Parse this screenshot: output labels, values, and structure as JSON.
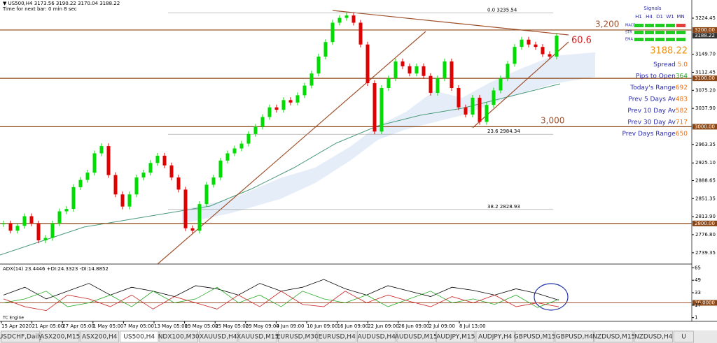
{
  "header": {
    "symbol": "▼ US500,H4 3173.56 3190.22 3170.04 3188.22",
    "timer": "Time for next bar: 0 min 8 sec"
  },
  "chart": {
    "type": "candlestick",
    "ylim": [
      2716,
      3262
    ],
    "closes": [
      2800,
      2785,
      2795,
      2815,
      2800,
      2765,
      2770,
      2800,
      2825,
      2830,
      2875,
      2890,
      2905,
      2945,
      2960,
      2900,
      2860,
      2835,
      2860,
      2895,
      2905,
      2925,
      2940,
      2920,
      2895,
      2870,
      2790,
      2785,
      2840,
      2880,
      2895,
      2930,
      2945,
      2955,
      2965,
      2985,
      3000,
      3020,
      3040,
      3035,
      3055,
      3050,
      3065,
      3085,
      3110,
      3145,
      3175,
      3215,
      3225,
      3230,
      3215,
      3170,
      3090,
      2990,
      3080,
      3100,
      3135,
      3125,
      3110,
      3125,
      3105,
      3070,
      3100,
      3135,
      3080,
      3040,
      3025,
      3060,
      3010,
      3045,
      3075,
      3100,
      3130,
      3165,
      3180,
      3170,
      3165,
      3150,
      3145,
      3188.22
    ],
    "up_color": "#00dd00",
    "down_color": "#e00000",
    "yticks": [
      3224.45,
      {
        "value": 3149.7,
        "label": "3149.70"
      },
      3112.45,
      {
        "value": 3075.2,
        "label": "3075.20"
      },
      {
        "value": 3037.9,
        "label": "3037.90"
      },
      2963.35,
      {
        "value": 2925.1,
        "label": "2925.10"
      },
      2888.65,
      2851.35,
      {
        "value": 2813.9,
        "label": "2813.90"
      },
      {
        "value": 2776.8,
        "label": "2776.80"
      },
      2739.35
    ],
    "levels": [
      {
        "value": 3200,
        "label": "3200.00"
      },
      {
        "value": 3100,
        "label": "3100.00"
      },
      {
        "value": 3000,
        "label": "3000.00"
      },
      {
        "value": 2800,
        "label": "2800.00"
      }
    ],
    "last": 3188.22,
    "fibs": [
      {
        "label": "0.0",
        "price": 3235.54
      },
      {
        "label": "23.6",
        "price": 2984.34
      },
      {
        "label": "38.2",
        "price": 2828.93
      }
    ],
    "notes": [
      "3,200",
      "3,000",
      "60.6"
    ],
    "xlabels": [
      "15 Apr 2020",
      "21 Apr 05:00",
      "27 Apr 05:00",
      "1 May 05:00",
      "7 May 05:00",
      "13 May 05:00",
      "19 May 05:00",
      "25 May 05:00",
      "29 May 09:00",
      "4 Jun 09:00",
      "10 Jun 09:00",
      "16 Jun 09:00",
      "22 Jun 09:00",
      "26 Jun 09:00",
      "2 Jul 09:00",
      "8 Jul 13:00"
    ]
  },
  "info": {
    "price": "3188.22",
    "rows": [
      [
        "Spread ",
        "5.0"
      ],
      [
        "Pips to Open",
        "364"
      ],
      [
        "Today's Range",
        "692"
      ],
      [
        "Prev 5 Days Av",
        "483"
      ],
      [
        "Prev 10 Day Av",
        "582"
      ],
      [
        "Prev 30 Day Av",
        "717"
      ],
      [
        "Prev Days Range",
        "650"
      ]
    ]
  },
  "signals": {
    "title": "Signals",
    "columns": [
      "H1",
      "H4",
      "D1",
      "W1",
      "MN"
    ],
    "rows": [
      {
        "name": "MACD",
        "colors": [
          "#22cc22",
          "#22cc22",
          "#22cc22",
          "#22cc22",
          "#e04040"
        ]
      },
      {
        "name": "STR",
        "colors": [
          "#22cc22",
          "#22cc22",
          "#22cc22",
          "#22cc22",
          "#22cc22"
        ]
      },
      {
        "name": "EMA",
        "colors": [
          "#22cc22",
          "#22cc22",
          "#22cc22",
          "#22cc22",
          "#22cc22"
        ]
      }
    ]
  },
  "adx": {
    "label": "ADX(14) 23.4446 +DI:24.3323 -DI:14.8852",
    "ylim": [
      -2,
      68
    ],
    "yticks": [
      65,
      49,
      33,
      {
        "value": 20,
        "label": "20.0000"
      },
      17,
      1
    ],
    "series": [
      {
        "color": "#000000",
        "values": [
          30,
          40,
          25,
          35,
          45,
          30,
          40,
          35,
          28,
          42,
          38,
          30,
          45,
          35,
          40,
          50,
          38,
          30,
          42,
          35,
          28,
          40,
          36,
          30,
          38,
          32,
          23.4446
        ]
      },
      {
        "color": "#22aa22",
        "values": [
          20,
          25,
          35,
          15,
          20,
          30,
          15,
          35,
          20,
          25,
          40,
          20,
          30,
          15,
          35,
          25,
          20,
          30,
          15,
          25,
          35,
          20,
          25,
          18,
          30,
          14,
          24.3323
        ]
      },
      {
        "color": "#cc2222",
        "values": [
          25,
          15,
          10,
          30,
          25,
          15,
          30,
          12,
          28,
          20,
          12,
          30,
          15,
          35,
          18,
          15,
          35,
          20,
          30,
          22,
          15,
          28,
          20,
          30,
          15,
          20,
          14.8852
        ]
      }
    ]
  },
  "engine": "TC Engine",
  "tabs": [
    "USDCHF,Daily",
    "ASX200,M15",
    "ASX200,H4",
    "US500,H4",
    "NDX100,M30",
    "XAUUSD,H4",
    "XAUUSD,M15",
    "EURUSD,M30",
    "EURUSD,H4",
    "AUDUSD,H4",
    "AUDUSD,M15",
    "AUDJPY,M15",
    "AUDJPY,H4",
    "GBPUSD,M15",
    "GBPUSD,H4",
    "NZDUSD,M15",
    "NZDUSD,H4",
    "U"
  ],
  "active_tab": 3
}
